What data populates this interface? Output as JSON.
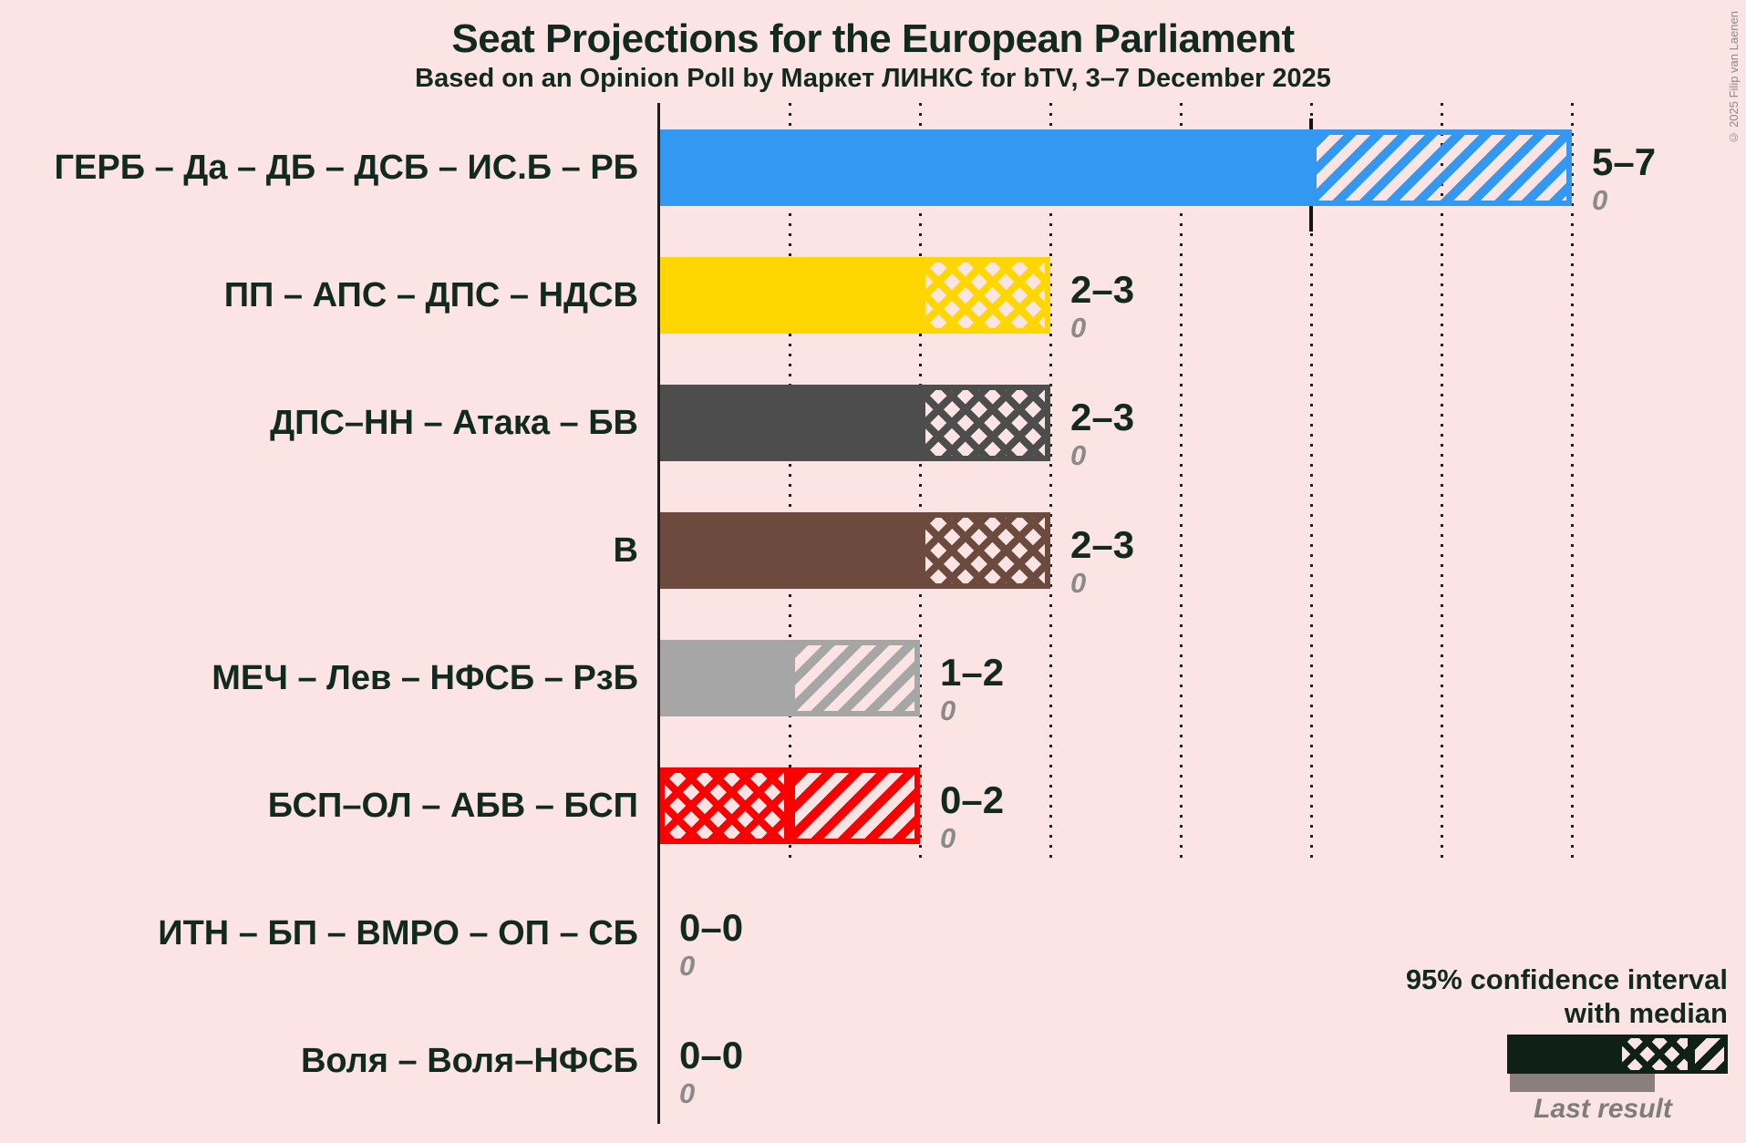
{
  "title": "Seat Projections for the European Parliament",
  "subtitle": "Based on an Opinion Poll by Маркет ЛИНКС for bTV, 3–7 December 2025",
  "copyright": "© 2025 Filip van Laenen",
  "legend": {
    "ci_line1": "95% confidence interval",
    "ci_line2": "with median",
    "last_result": "Last result"
  },
  "colors": {
    "background": "#FCE4E4",
    "ink": "#12291F",
    "gray_text": "#8A8A8A",
    "axis": "#1C1C1C",
    "legend_bar": "#0F2019",
    "last_result_bar": "#8B7F7D"
  },
  "chart_data": {
    "type": "bar",
    "orientation": "horizontal",
    "x_axis": {
      "min": 0,
      "max": 7,
      "gridline_step": 1,
      "gridline_style": "dotted",
      "grid": true
    },
    "legend_position": "bottom-right",
    "parties": [
      {
        "label": "ГЕРБ – Да – ДБ – ДСБ – ИС.Б – РБ",
        "ci_low": 5,
        "median": 5,
        "ci_high": 7,
        "seats_label": "5–7",
        "last_result": 0,
        "last_result_label": "0",
        "color": "#3398F2",
        "median_tick": true
      },
      {
        "label": "ПП – АПС – ДПС – НДСВ",
        "ci_low": 2,
        "median": 3,
        "ci_high": 3,
        "seats_label": "2–3",
        "last_result": 0,
        "last_result_label": "0",
        "color": "#FFD601",
        "median_tick": false
      },
      {
        "label": "ДПС–НН – Атака – БВ",
        "ci_low": 2,
        "median": 3,
        "ci_high": 3,
        "seats_label": "2–3",
        "last_result": 0,
        "last_result_label": "0",
        "color": "#4D4D4D",
        "median_tick": false
      },
      {
        "label": "В",
        "ci_low": 2,
        "median": 3,
        "ci_high": 3,
        "seats_label": "2–3",
        "last_result": 0,
        "last_result_label": "0",
        "color": "#6C4A3E",
        "median_tick": false
      },
      {
        "label": "МЕЧ – Лев – НФСБ – РзБ",
        "ci_low": 1,
        "median": 1,
        "ci_high": 2,
        "seats_label": "1–2",
        "last_result": 0,
        "last_result_label": "0",
        "color": "#A6A6A6",
        "median_tick": false
      },
      {
        "label": "БСП–ОЛ – АБВ – БСП",
        "ci_low": 0,
        "median": 1,
        "ci_high": 2,
        "seats_label": "0–2",
        "last_result": 0,
        "last_result_label": "0",
        "color": "#FA0000",
        "median_tick": false
      },
      {
        "label": "ИТН – БП – ВМРО – ОП – СБ",
        "ci_low": 0,
        "median": 0,
        "ci_high": 0,
        "seats_label": "0–0",
        "last_result": 0,
        "last_result_label": "0",
        "color": null,
        "median_tick": false
      },
      {
        "label": "Воля – Воля–НФСБ",
        "ci_low": 0,
        "median": 0,
        "ci_high": 0,
        "seats_label": "0–0",
        "last_result": 0,
        "last_result_label": "0",
        "color": null,
        "median_tick": false
      }
    ]
  }
}
